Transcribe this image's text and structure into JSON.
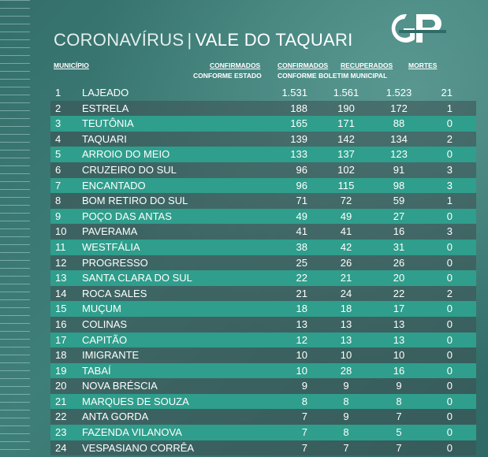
{
  "title": {
    "main": "CORONAVÍRUS",
    "separator": "|",
    "region": "VALE DO TAQUARI"
  },
  "logo": {
    "text": "GP"
  },
  "headers": {
    "municipio": "MUNICÍPIO",
    "confirmados_1": "CONFIRMADOS",
    "conforme_estado": "CONFORME ESTADO",
    "confirmados_2": "CONFIRMADOS",
    "recuperados": "RECUPERADOS",
    "conforme_boletim": "CONFORME BOLETIM MUNICIPAL",
    "mortes": "MORTES"
  },
  "rows": [
    {
      "n": "1",
      "name": "LAJEADO",
      "est": "1.531",
      "bol": "1.561",
      "rec": "1.523",
      "mor": "21"
    },
    {
      "n": "2",
      "name": "ESTRELA",
      "est": "188",
      "bol": "190",
      "rec": "172",
      "mor": "1"
    },
    {
      "n": "3",
      "name": "TEUTÔNIA",
      "est": "165",
      "bol": "171",
      "rec": "88",
      "mor": "0"
    },
    {
      "n": "4",
      "name": "TAQUARI",
      "est": "139",
      "bol": "142",
      "rec": "134",
      "mor": "2"
    },
    {
      "n": "5",
      "name": "ARROIO DO MEIO",
      "est": "133",
      "bol": "137",
      "rec": "123",
      "mor": "0"
    },
    {
      "n": "6",
      "name": "CRUZEIRO DO SUL",
      "est": "96",
      "bol": "102",
      "rec": "91",
      "mor": "3"
    },
    {
      "n": "7",
      "name": "ENCANTADO",
      "est": "96",
      "bol": "115",
      "rec": "98",
      "mor": "3"
    },
    {
      "n": "8",
      "name": "BOM RETIRO DO SUL",
      "est": "71",
      "bol": "72",
      "rec": "59",
      "mor": "1"
    },
    {
      "n": "9",
      "name": "POÇO DAS ANTAS",
      "est": "49",
      "bol": "49",
      "rec": "27",
      "mor": "0"
    },
    {
      "n": "10",
      "name": "PAVERAMA",
      "est": "41",
      "bol": "41",
      "rec": "16",
      "mor": "3"
    },
    {
      "n": "11",
      "name": "WESTFÁLIA",
      "est": "38",
      "bol": "42",
      "rec": "31",
      "mor": "0"
    },
    {
      "n": "12",
      "name": "PROGRESSO",
      "est": "25",
      "bol": "26",
      "rec": "26",
      "mor": "0"
    },
    {
      "n": "13",
      "name": "SANTA CLARA DO SUL",
      "est": "22",
      "bol": "21",
      "rec": "20",
      "mor": "0"
    },
    {
      "n": "14",
      "name": "ROCA SALES",
      "est": "21",
      "bol": "24",
      "rec": "22",
      "mor": "2"
    },
    {
      "n": "15",
      "name": "MUÇUM",
      "est": "18",
      "bol": "18",
      "rec": "17",
      "mor": "0"
    },
    {
      "n": "16",
      "name": "COLINAS",
      "est": "13",
      "bol": "13",
      "rec": "13",
      "mor": "0"
    },
    {
      "n": "17",
      "name": "CAPITÃO",
      "est": "12",
      "bol": "13",
      "rec": "13",
      "mor": "0"
    },
    {
      "n": "18",
      "name": "IMIGRANTE",
      "est": "10",
      "bol": "10",
      "rec": "10",
      "mor": "0"
    },
    {
      "n": "19",
      "name": "TABAÍ",
      "est": "10",
      "bol": "28",
      "rec": "16",
      "mor": "0"
    },
    {
      "n": "20",
      "name": "NOVA BRÉSCIA",
      "est": "9",
      "bol": "9",
      "rec": "9",
      "mor": "0"
    },
    {
      "n": "21",
      "name": "MARQUES DE SOUZA",
      "est": "8",
      "bol": "8",
      "rec": "8",
      "mor": "0"
    },
    {
      "n": "22",
      "name": "ANTA GORDA",
      "est": "7",
      "bol": "9",
      "rec": "7",
      "mor": "0"
    },
    {
      "n": "23",
      "name": "FAZENDA VILANOVA",
      "est": "7",
      "bol": "8",
      "rec": "5",
      "mor": "0"
    },
    {
      "n": "24",
      "name": "VESPASIANO CORRÊA",
      "est": "7",
      "bol": "7",
      "rec": "7",
      "mor": "0"
    }
  ]
}
